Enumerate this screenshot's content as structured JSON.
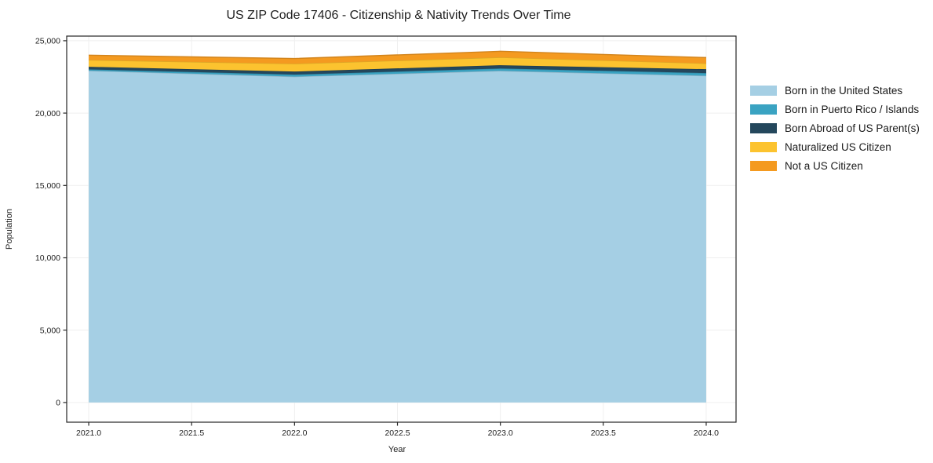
{
  "figure": {
    "background": "#ffffff"
  },
  "chart_data": {
    "type": "area",
    "stacked": true,
    "title": "US ZIP Code 17406 - Citizenship & Nativity Trends Over Time",
    "xlabel": "Year",
    "ylabel": "Population",
    "x": [
      2021,
      2022,
      2023,
      2024
    ],
    "series": [
      {
        "name": "Born in the United States",
        "color": "#A5CFE4",
        "values": [
          22930,
          22520,
          22920,
          22580
        ]
      },
      {
        "name": "Born in Puerto Rico / Islands",
        "color": "#3AA3C2",
        "values": [
          90,
          140,
          160,
          185
        ]
      },
      {
        "name": "Born Abroad of US Parent(s)",
        "color": "#24475C",
        "values": [
          180,
          210,
          230,
          270
        ]
      },
      {
        "name": "Naturalized US Citizen",
        "color": "#FCC32F",
        "values": [
          470,
          540,
          540,
          400
        ]
      },
      {
        "name": "Not a US Citizen",
        "color": "#F49A20",
        "values": [
          330,
          360,
          420,
          400
        ]
      }
    ],
    "totals": [
      24000,
      23770,
      24270,
      23835
    ],
    "xlim": [
      2020.893,
      2024.145
    ],
    "ylim": [
      -1360,
      25320
    ],
    "xticks": [
      2021,
      2021.5,
      2022,
      2022.5,
      2023,
      2023.5,
      2024
    ],
    "xtick_labels": [
      "2021.0",
      "2021.5",
      "2022.0",
      "2022.5",
      "2023.0",
      "2023.5",
      "2024.0"
    ],
    "yticks": [
      0,
      5000,
      10000,
      15000,
      20000,
      25000
    ],
    "ytick_labels": [
      "0",
      "5,000",
      "10,000",
      "15,000",
      "20,000",
      "25,000"
    ],
    "grid": true,
    "grid_color": "#efefef",
    "spine_color": "#262626",
    "legend_position": "right-outside"
  }
}
